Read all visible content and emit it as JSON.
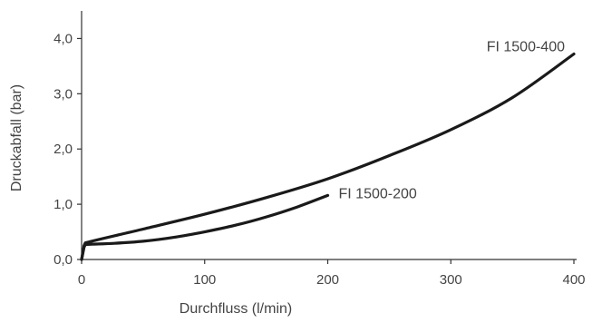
{
  "chart_data": {
    "type": "line",
    "title": "",
    "xlabel": "Durchfluss (l/min)",
    "ylabel": "Druckabfall (bar)",
    "xlim": [
      0,
      400
    ],
    "ylim": [
      0,
      4.5
    ],
    "x_ticks": [
      {
        "value": 0,
        "label": "0"
      },
      {
        "value": 100,
        "label": "100"
      },
      {
        "value": 200,
        "label": "200"
      },
      {
        "value": 300,
        "label": "300"
      },
      {
        "value": 400,
        "label": "400"
      }
    ],
    "y_ticks": [
      {
        "value": 0,
        "label": "0,0"
      },
      {
        "value": 1,
        "label": "1,0"
      },
      {
        "value": 2,
        "label": "2,0"
      },
      {
        "value": 3,
        "label": "3,0"
      },
      {
        "value": 4,
        "label": "4,0"
      }
    ],
    "grid": false,
    "series": [
      {
        "name": "FI 1500-400",
        "x": [
          0,
          2,
          3,
          50,
          100,
          150,
          200,
          250,
          300,
          350,
          400
        ],
        "y": [
          0,
          0.25,
          0.3,
          0.55,
          0.82,
          1.12,
          1.46,
          1.88,
          2.35,
          2.93,
          3.72
        ]
      },
      {
        "name": "FI 1500-200",
        "x": [
          0,
          2,
          3,
          25,
          50,
          75,
          100,
          125,
          150,
          175,
          200
        ],
        "y": [
          0,
          0.22,
          0.27,
          0.29,
          0.33,
          0.4,
          0.5,
          0.62,
          0.77,
          0.95,
          1.16
        ]
      }
    ],
    "line_color": "#1a1a1a"
  }
}
